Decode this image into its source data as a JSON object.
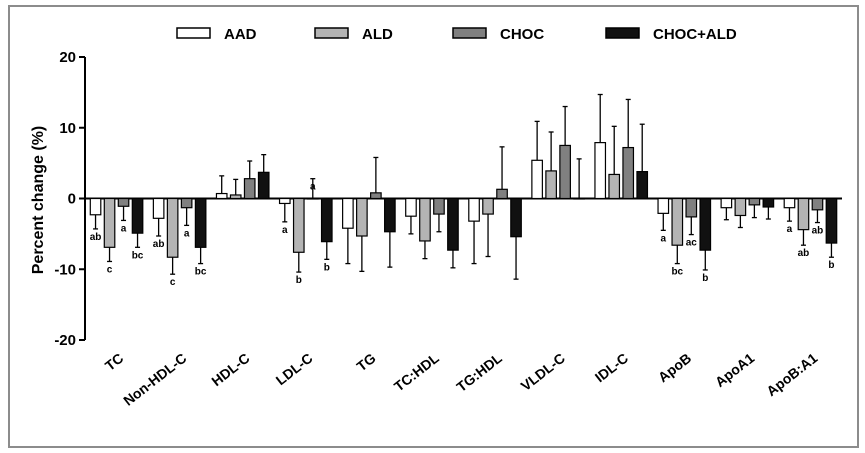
{
  "chart_data": {
    "type": "bar",
    "ylabel": "Percent change (%)",
    "ylim": [
      -20,
      20
    ],
    "yticks": [
      -20,
      -10,
      0,
      10,
      20
    ],
    "grid": false,
    "legend_position": "top",
    "categories": [
      "TC",
      "Non-HDL-C",
      "HDL-C",
      "LDL-C",
      "TG",
      "TC:HDL",
      "TG:HDL",
      "VLDL-C",
      "IDL-C",
      "ApoB",
      "ApoA1",
      "ApoB:A1"
    ],
    "series": [
      {
        "name": "AAD",
        "color": "#ffffff",
        "values": [
          -2.3,
          -2.8,
          0.7,
          -0.7,
          -4.2,
          -2.5,
          -3.2,
          5.4,
          7.9,
          -2.1,
          -1.3,
          -1.3
        ],
        "errors": [
          2.0,
          2.5,
          2.5,
          2.6,
          5.0,
          2.5,
          6.0,
          5.5,
          6.8,
          2.4,
          1.7,
          1.9
        ],
        "sig": [
          "ab",
          "ab",
          "",
          "a",
          "",
          "",
          "",
          "",
          "",
          "a",
          "",
          "a"
        ]
      },
      {
        "name": "ALD",
        "color": "#b4b4b4",
        "values": [
          -6.9,
          -8.3,
          0.5,
          -7.6,
          -5.3,
          -6.0,
          -2.2,
          3.9,
          3.4,
          -6.6,
          -2.4,
          -4.4
        ],
        "errors": [
          2.0,
          2.4,
          2.2,
          2.8,
          5.0,
          2.5,
          6.0,
          5.5,
          6.8,
          2.6,
          1.7,
          2.2
        ],
        "sig": [
          "c",
          "c",
          "",
          "b",
          "",
          "",
          "",
          "",
          "",
          "bc",
          "",
          "ab"
        ]
      },
      {
        "name": "CHOC",
        "color": "#808080",
        "values": [
          -1.1,
          -1.3,
          2.8,
          0,
          0.8,
          -2.2,
          1.3,
          7.5,
          7.2,
          -2.6,
          -0.9,
          -1.6
        ],
        "errors": [
          2.0,
          2.5,
          2.5,
          2.8,
          5.0,
          2.5,
          6.0,
          5.5,
          6.8,
          2.5,
          1.8,
          1.8
        ],
        "sig": [
          "a",
          "a",
          "",
          "a",
          "",
          "",
          "",
          "",
          "",
          "ac",
          "",
          "ab"
        ]
      },
      {
        "name": "CHOC+ALD",
        "color": "#111111",
        "values": [
          -4.9,
          -6.9,
          3.7,
          -6.1,
          -4.7,
          -7.3,
          -5.4,
          0,
          3.8,
          -7.3,
          -1.2,
          -6.3
        ],
        "errors": [
          2.0,
          2.3,
          2.5,
          2.5,
          5.0,
          2.5,
          6.0,
          5.6,
          6.7,
          2.8,
          1.7,
          2.0
        ],
        "sig": [
          "bc",
          "bc",
          "",
          "b",
          "",
          "",
          "",
          "",
          "",
          "b",
          "",
          "b"
        ]
      }
    ]
  }
}
